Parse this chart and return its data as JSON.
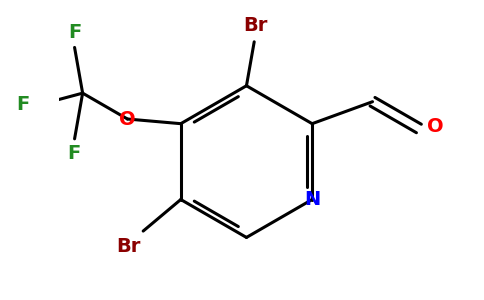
{
  "bg_color": "#ffffff",
  "atom_colors": {
    "C": "#000000",
    "N": "#0000ff",
    "O": "#ff0000",
    "Br": "#8b0000",
    "F": "#228b22"
  },
  "bond_color": "#000000",
  "bond_width": 2.2
}
